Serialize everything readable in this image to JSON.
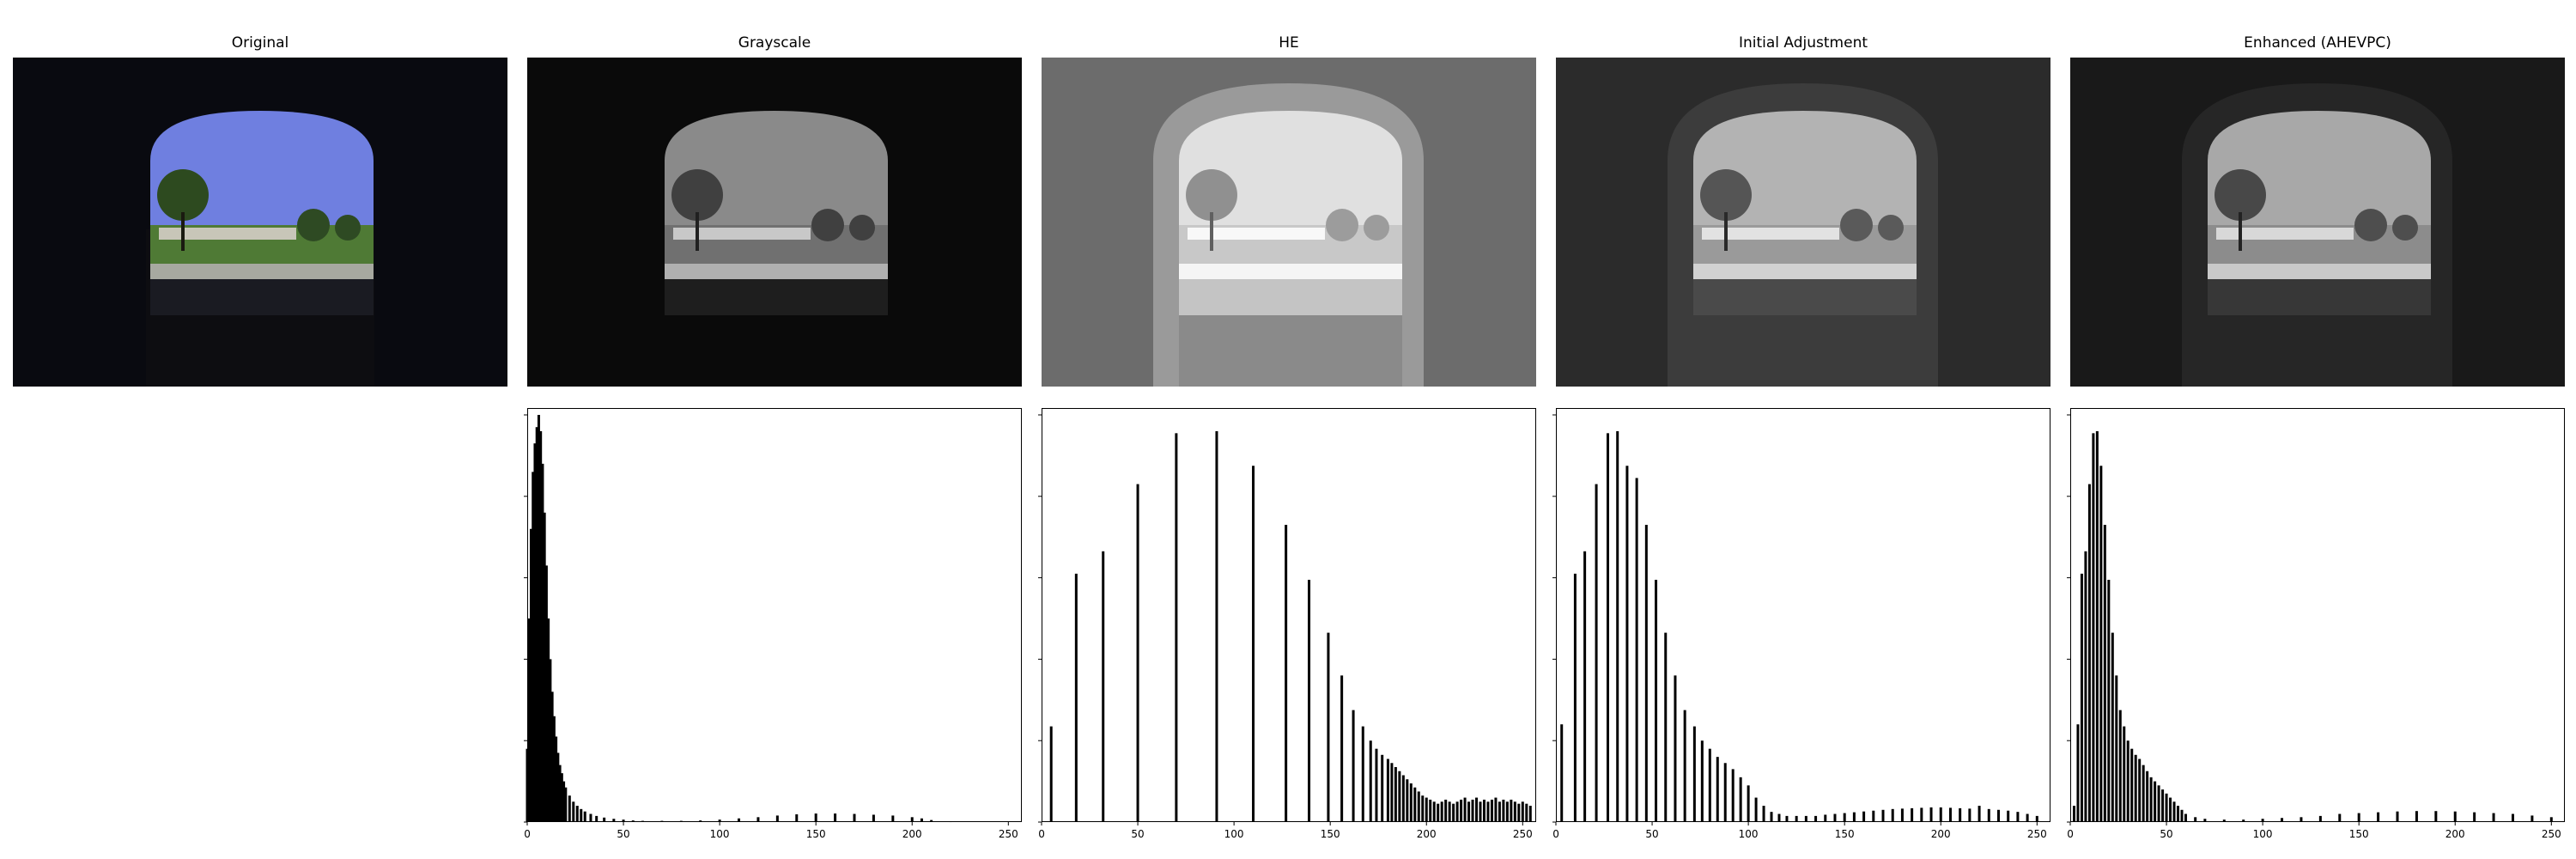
{
  "panels": [
    {
      "title": "Original"
    },
    {
      "title": "Grayscale"
    },
    {
      "title": "HE"
    },
    {
      "title": "Initial Adjustment"
    },
    {
      "title": "Enhanced (AHEVPC)"
    }
  ],
  "colors": {
    "sky_original": "#6f7fe0",
    "grass_original": "#4f7a35",
    "bar": "#000000",
    "frame": "#000000"
  },
  "chart_data": [
    {
      "type": "bar",
      "panel": "Grayscale",
      "title": "",
      "xlabel": "",
      "ylabel": "",
      "xlim": [
        0,
        255
      ],
      "xticks": [
        0,
        50,
        100,
        150,
        200,
        250
      ],
      "x": [
        0,
        1,
        2,
        3,
        4,
        5,
        6,
        7,
        8,
        9,
        10,
        11,
        12,
        13,
        14,
        15,
        16,
        17,
        18,
        19,
        20,
        22,
        24,
        26,
        28,
        30,
        33,
        36,
        40,
        45,
        50,
        55,
        60,
        70,
        80,
        90,
        100,
        110,
        120,
        130,
        140,
        150,
        160,
        170,
        180,
        190,
        200,
        205,
        210,
        215,
        220
      ],
      "values": [
        0.18,
        0.5,
        0.72,
        0.86,
        0.93,
        0.97,
        1.0,
        0.96,
        0.88,
        0.76,
        0.63,
        0.5,
        0.4,
        0.32,
        0.26,
        0.21,
        0.17,
        0.14,
        0.12,
        0.1,
        0.085,
        0.065,
        0.05,
        0.04,
        0.032,
        0.026,
        0.02,
        0.015,
        0.011,
        0.008,
        0.006,
        0.004,
        0.003,
        0.003,
        0.003,
        0.004,
        0.006,
        0.009,
        0.012,
        0.016,
        0.019,
        0.021,
        0.021,
        0.02,
        0.018,
        0.016,
        0.012,
        0.009,
        0.005,
        0.002,
        0.001
      ]
    },
    {
      "type": "bar",
      "panel": "HE",
      "title": "",
      "xlabel": "",
      "ylabel": "",
      "xlim": [
        0,
        255
      ],
      "xticks": [
        0,
        50,
        100,
        150,
        200,
        250
      ],
      "x": [
        5,
        18,
        32,
        50,
        70,
        91,
        110,
        127,
        139,
        149,
        156,
        162,
        167,
        171,
        174,
        177,
        180,
        182,
        184,
        186,
        188,
        190,
        192,
        194,
        196,
        198,
        200,
        202,
        204,
        206,
        208,
        210,
        212,
        214,
        216,
        218,
        220,
        222,
        224,
        226,
        228,
        230,
        232,
        234,
        236,
        238,
        240,
        242,
        244,
        246,
        248,
        250,
        252,
        254
      ],
      "values": [
        0.235,
        0.61,
        0.665,
        0.83,
        0.955,
        0.96,
        0.875,
        0.73,
        0.595,
        0.465,
        0.36,
        0.275,
        0.235,
        0.2,
        0.18,
        0.165,
        0.155,
        0.145,
        0.135,
        0.125,
        0.115,
        0.105,
        0.095,
        0.085,
        0.075,
        0.065,
        0.06,
        0.055,
        0.05,
        0.045,
        0.05,
        0.055,
        0.05,
        0.045,
        0.05,
        0.055,
        0.06,
        0.05,
        0.055,
        0.06,
        0.05,
        0.055,
        0.05,
        0.055,
        0.06,
        0.05,
        0.055,
        0.05,
        0.055,
        0.05,
        0.045,
        0.05,
        0.045,
        0.04
      ]
    },
    {
      "type": "bar",
      "panel": "Initial Adjustment",
      "title": "",
      "xlabel": "",
      "ylabel": "",
      "xlim": [
        0,
        255
      ],
      "xticks": [
        0,
        50,
        100,
        150,
        200,
        250
      ],
      "x": [
        3,
        10,
        15,
        21,
        27,
        32,
        37,
        42,
        47,
        52,
        57,
        62,
        67,
        72,
        76,
        80,
        84,
        88,
        92,
        96,
        100,
        104,
        108,
        112,
        116,
        120,
        125,
        130,
        135,
        140,
        145,
        150,
        155,
        160,
        165,
        170,
        175,
        180,
        185,
        190,
        195,
        200,
        205,
        210,
        215,
        220,
        225,
        230,
        235,
        240,
        245,
        250
      ],
      "values": [
        0.24,
        0.61,
        0.665,
        0.83,
        0.955,
        0.96,
        0.875,
        0.845,
        0.73,
        0.595,
        0.465,
        0.36,
        0.275,
        0.235,
        0.2,
        0.18,
        0.16,
        0.145,
        0.13,
        0.11,
        0.09,
        0.06,
        0.04,
        0.025,
        0.02,
        0.015,
        0.015,
        0.015,
        0.015,
        0.018,
        0.02,
        0.022,
        0.024,
        0.026,
        0.028,
        0.03,
        0.032,
        0.033,
        0.034,
        0.035,
        0.036,
        0.036,
        0.035,
        0.034,
        0.033,
        0.04,
        0.032,
        0.03,
        0.028,
        0.025,
        0.02,
        0.015
      ]
    },
    {
      "type": "bar",
      "panel": "Enhanced (AHEVPC)",
      "title": "",
      "xlabel": "",
      "ylabel": "",
      "xlim": [
        0,
        255
      ],
      "xticks": [
        0,
        50,
        100,
        150,
        200,
        250
      ],
      "x": [
        2,
        4,
        6,
        8,
        10,
        12,
        14,
        16,
        18,
        20,
        22,
        24,
        26,
        28,
        30,
        32,
        34,
        36,
        38,
        40,
        42,
        44,
        46,
        48,
        50,
        52,
        54,
        56,
        58,
        60,
        65,
        70,
        80,
        90,
        100,
        110,
        120,
        130,
        140,
        150,
        160,
        170,
        180,
        190,
        200,
        210,
        220,
        230,
        240,
        250
      ],
      "values": [
        0.04,
        0.24,
        0.61,
        0.665,
        0.83,
        0.955,
        0.96,
        0.875,
        0.73,
        0.595,
        0.465,
        0.36,
        0.275,
        0.235,
        0.2,
        0.18,
        0.165,
        0.155,
        0.14,
        0.125,
        0.11,
        0.1,
        0.09,
        0.08,
        0.07,
        0.06,
        0.05,
        0.04,
        0.03,
        0.02,
        0.012,
        0.008,
        0.006,
        0.006,
        0.008,
        0.01,
        0.012,
        0.015,
        0.02,
        0.022,
        0.024,
        0.026,
        0.027,
        0.027,
        0.026,
        0.024,
        0.022,
        0.02,
        0.016,
        0.012
      ]
    }
  ]
}
